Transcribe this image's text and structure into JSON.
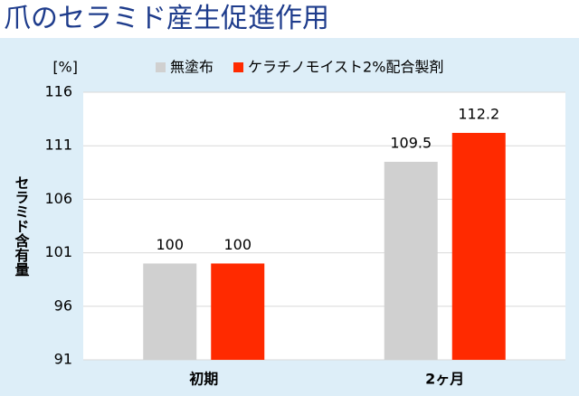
{
  "chart_data": {
    "type": "bar",
    "title": "爪のセラミド産生促進作用",
    "y_label": "セラミド含有量",
    "y_unit": "[%]",
    "categories": [
      "初期",
      "2ヶ月"
    ],
    "series": [
      {
        "name": "無塗布",
        "color": "#d0d0d0",
        "values": [
          100,
          109.5
        ]
      },
      {
        "name": "ケラチノモイスト2%配合製剤",
        "color": "#ff2a00",
        "values": [
          100,
          112.2
        ]
      }
    ],
    "ylim": [
      91,
      116
    ],
    "yticks": [
      91,
      96,
      101,
      106,
      111,
      116
    ],
    "grid": true
  }
}
